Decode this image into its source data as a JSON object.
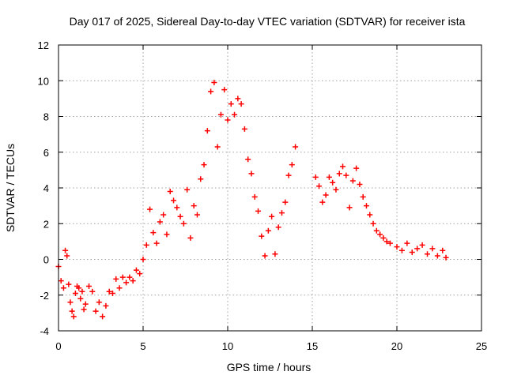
{
  "chart_data": {
    "type": "scatter",
    "title": "Day 017 of 2025, Sidereal Day-to-day VTEC variation (SDTVAR) for receiver ista",
    "xlabel": "GPS time / hours",
    "ylabel": "SDTVAR / TECUs",
    "xlim": [
      0,
      25
    ],
    "ylim": [
      -4,
      12
    ],
    "xticks": [
      0,
      5,
      10,
      15,
      20,
      25
    ],
    "yticks": [
      -4,
      -2,
      0,
      2,
      4,
      6,
      8,
      10,
      12
    ],
    "grid": true,
    "marker": "+",
    "color": "#ff0000",
    "series": [
      {
        "name": "SDTVAR",
        "x": [
          0.0,
          0.15,
          0.3,
          0.4,
          0.5,
          0.6,
          0.7,
          0.8,
          0.9,
          1.0,
          1.1,
          1.2,
          1.3,
          1.4,
          1.5,
          1.6,
          1.8,
          2.0,
          2.2,
          2.4,
          2.6,
          2.8,
          3.0,
          3.2,
          3.4,
          3.6,
          3.8,
          4.0,
          4.2,
          4.4,
          4.6,
          4.8,
          5.0,
          5.2,
          5.4,
          5.6,
          5.8,
          6.0,
          6.2,
          6.4,
          6.6,
          6.8,
          7.0,
          7.2,
          7.4,
          7.6,
          7.8,
          8.0,
          8.2,
          8.4,
          8.6,
          8.8,
          9.0,
          9.2,
          9.4,
          9.6,
          9.8,
          10.0,
          10.2,
          10.4,
          10.6,
          10.8,
          11.0,
          11.2,
          11.4,
          11.6,
          11.8,
          12.0,
          12.2,
          12.4,
          12.6,
          12.8,
          13.0,
          13.2,
          13.4,
          13.6,
          13.8,
          14.0,
          15.2,
          15.4,
          15.6,
          15.8,
          16.0,
          16.2,
          16.4,
          16.6,
          16.8,
          17.0,
          17.2,
          17.4,
          17.6,
          17.8,
          18.0,
          18.2,
          18.4,
          18.6,
          18.8,
          19.0,
          19.2,
          19.4,
          19.6,
          20.0,
          20.3,
          20.6,
          20.9,
          21.2,
          21.5,
          21.8,
          22.1,
          22.4,
          22.7,
          22.9
        ],
        "y": [
          -0.4,
          -1.2,
          -1.6,
          0.5,
          0.2,
          -1.4,
          -2.4,
          -2.9,
          -3.2,
          -1.9,
          -1.5,
          -1.6,
          -2.2,
          -1.8,
          -2.8,
          -2.5,
          -1.5,
          -1.8,
          -2.9,
          -2.4,
          -3.2,
          -2.6,
          -1.8,
          -1.9,
          -1.1,
          -1.6,
          -1.0,
          -1.3,
          -1.0,
          -1.2,
          -0.6,
          -0.8,
          0.0,
          0.8,
          2.8,
          1.5,
          0.9,
          2.1,
          2.5,
          1.4,
          3.8,
          3.3,
          2.9,
          2.4,
          2.0,
          3.9,
          1.2,
          3.0,
          2.5,
          4.5,
          5.3,
          7.2,
          9.4,
          9.9,
          6.3,
          8.1,
          9.5,
          7.8,
          8.7,
          8.1,
          9.0,
          8.7,
          7.3,
          5.6,
          4.8,
          3.5,
          2.7,
          1.3,
          0.2,
          1.6,
          2.4,
          0.3,
          1.8,
          2.6,
          3.2,
          4.7,
          5.3,
          6.3,
          4.6,
          4.1,
          3.2,
          3.6,
          4.6,
          4.3,
          3.9,
          4.8,
          5.2,
          4.7,
          2.9,
          4.4,
          5.1,
          4.2,
          3.5,
          3.0,
          2.5,
          2.0,
          1.6,
          1.4,
          1.2,
          1.0,
          0.9,
          0.7,
          0.5,
          0.9,
          0.4,
          0.6,
          0.8,
          0.3,
          0.6,
          0.2,
          0.5,
          0.1
        ]
      }
    ]
  }
}
